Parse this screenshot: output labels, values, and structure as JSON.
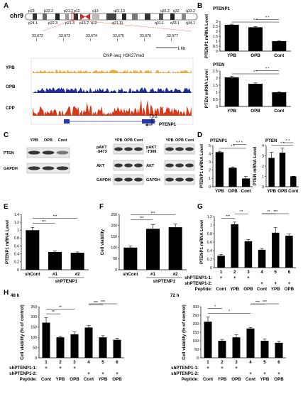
{
  "panels": {
    "A": "A",
    "B": "B",
    "C": "C",
    "D": "D",
    "E": "E",
    "F": "F",
    "G": "G",
    "H": "H"
  },
  "panelA": {
    "chrom": "chr9",
    "bands_top": [
      "p23",
      "p22.2",
      "p21.2",
      "p12",
      "q13",
      "q21.13",
      "q31.2",
      "q32",
      "q33.2"
    ],
    "bands_bottom": [
      "p24.1",
      "p22.3",
      "p21.3",
      "p13.2",
      "q12",
      "q21.11",
      "q31.1",
      "q33.1",
      "q34.1"
    ],
    "coords": [
      "33,672",
      "33,673",
      "33,674",
      "33,675",
      "33,676",
      "33,677"
    ],
    "coord_suffix": "I",
    "scale": "1 kb",
    "chip_label": "ChIP-seq: H3K27me3",
    "tracks": [
      "YPB",
      "OPB",
      "CPP"
    ],
    "track_colors": [
      "#f2a93b",
      "#1f2a9b",
      "#d6391a"
    ],
    "tss": "TSS",
    "gene": "PTENP1"
  },
  "panelC": {
    "lanes": [
      "YPB",
      "OPB",
      "Cont"
    ],
    "blot1_rows": [
      "PTEN",
      "GAPDH"
    ],
    "blot2_rows": [
      "pAKT\n-S473",
      "AKT",
      "GAPDH"
    ],
    "blot3_rows": [
      "pAKT\n-T308",
      "AKT",
      "GAPDH"
    ]
  },
  "chart_data": [
    {
      "id": "B-top",
      "type": "bar",
      "title": "PTENP1",
      "ylabel": "PTENP1 mRNA Level",
      "categories": [
        "YPB",
        "OPB",
        "Cont"
      ],
      "values": [
        2.65,
        2.4,
        1.0
      ],
      "errors": [
        0.06,
        0.06,
        0.04
      ],
      "ylim": [
        0,
        3
      ],
      "yticks": [
        0,
        0.5,
        1,
        1.5,
        2,
        2.5,
        3
      ],
      "sig": [
        [
          "0",
          "2",
          "* *"
        ],
        [
          "1",
          "2",
          "* *"
        ]
      ]
    },
    {
      "id": "B-bot",
      "type": "bar",
      "title": "PTEN",
      "ylabel": "PTEN mRNA Level",
      "categories": [
        "YPB",
        "OPB",
        "Cont"
      ],
      "values": [
        2.05,
        1.6,
        1.0
      ],
      "errors": [
        0.07,
        0.06,
        0.04
      ],
      "ylim": [
        0,
        2.5
      ],
      "yticks": [
        0,
        0.5,
        1,
        1.5,
        2,
        2.5
      ],
      "sig": [
        [
          "0",
          "2",
          "* *"
        ],
        [
          "1",
          "2",
          "* *"
        ]
      ]
    },
    {
      "id": "D-left",
      "type": "bar",
      "title": "PTENP1",
      "ylabel": "PTENP1 mRNA Level",
      "categories": [
        "YPB",
        "OPB",
        "Cont"
      ],
      "values": [
        4.2,
        2.3,
        1.0
      ],
      "errors": [
        0.1,
        0.1,
        0.25
      ],
      "ylim": [
        0,
        5
      ],
      "yticks": [
        0,
        1,
        2,
        3,
        4,
        5
      ],
      "sig": [
        [
          "0",
          "2",
          "* *"
        ],
        [
          "1",
          "2",
          "* * *"
        ]
      ]
    },
    {
      "id": "D-right",
      "type": "bar",
      "title": "PTEN",
      "ylabel": "PTEN mRNA Level",
      "categories": [
        "YPB",
        "OPB",
        "Cont"
      ],
      "values": [
        2.8,
        3.3,
        1.0
      ],
      "errors": [
        0.55,
        0.45,
        0.02
      ],
      "ylim": [
        0,
        4
      ],
      "yticks": [
        0,
        1,
        2,
        3,
        4
      ],
      "sig": [
        [
          "0",
          "2",
          "* *"
        ],
        [
          "1",
          "2",
          "* *"
        ]
      ]
    },
    {
      "id": "E",
      "type": "bar",
      "ylabel": "PTENP1 mRNA Level",
      "categories": [
        "shCont",
        "#1",
        "#2"
      ],
      "group_label": "shPTENP1",
      "values": [
        1.0,
        0.45,
        0.43
      ],
      "errors": [
        0.07,
        0.03,
        0.02
      ],
      "ylim": [
        0,
        1.4
      ],
      "yticks": [
        0,
        0.2,
        0.4,
        0.6,
        0.8,
        1,
        1.2,
        1.4
      ],
      "sig": [
        [
          "0",
          "1",
          "***"
        ],
        [
          "0",
          "2",
          "***"
        ]
      ]
    },
    {
      "id": "F",
      "type": "bar",
      "ylabel": "Cell viability",
      "categories": [
        "shCont",
        "#1",
        "#2"
      ],
      "group_label": "shPTENP1",
      "values": [
        100,
        185,
        192
      ],
      "errors": [
        8,
        18,
        15
      ],
      "ylim": [
        0,
        250
      ],
      "yticks": [
        0,
        50,
        100,
        150,
        200,
        250
      ],
      "sig": [
        [
          "0",
          "1",
          "***"
        ],
        [
          "0",
          "2",
          "***"
        ]
      ]
    },
    {
      "id": "G",
      "type": "bar",
      "ylabel": "PTENP1 mRNA Level",
      "categories": [
        "1",
        "2",
        "3",
        "4",
        "5",
        "6"
      ],
      "values": [
        0.28,
        1.02,
        0.62,
        0.42,
        0.82,
        0.75
      ],
      "errors": [
        0.03,
        0.05,
        0.04,
        0.03,
        0.12,
        0.04
      ],
      "ylim": [
        0,
        1.2
      ],
      "yticks": [
        0,
        0.2,
        0.4,
        0.6,
        0.8,
        1,
        1.2
      ],
      "sig": [
        [
          "0",
          "1",
          "***"
        ],
        [
          "1",
          "2",
          "**"
        ],
        [
          "3",
          "4",
          "**"
        ],
        [
          "3",
          "5",
          "***"
        ]
      ],
      "rows": [
        {
          "label": "shPTENP1-1:",
          "vals": [
            "+",
            "+",
            "+",
            "",
            "",
            ""
          ]
        },
        {
          "label": "shPTENP1-2:",
          "vals": [
            "",
            "",
            "",
            "+",
            "+",
            "+"
          ]
        },
        {
          "label": "Peptide:",
          "vals": [
            "Cont",
            "YPB",
            "OPB",
            "Cont",
            "YPB",
            "OPB"
          ]
        }
      ]
    },
    {
      "id": "H-48",
      "type": "bar",
      "title": "48 h",
      "ylabel": "Cell viability (% of control)",
      "categories": [
        "1",
        "2",
        "3",
        "4",
        "5",
        "6"
      ],
      "values": [
        172,
        100,
        115,
        148,
        100,
        88
      ],
      "errors": [
        25,
        6,
        12,
        10,
        8,
        8
      ],
      "ylim": [
        0,
        250
      ],
      "yticks": [
        0,
        50,
        100,
        150,
        200,
        250
      ],
      "sig": [
        [
          "0",
          "1",
          "**"
        ],
        [
          "0",
          "2",
          "**"
        ],
        [
          "3",
          "4",
          "***"
        ],
        [
          "3",
          "5",
          "***"
        ]
      ],
      "rows": [
        {
          "label": "shPTENP1-1:",
          "vals": [
            "+",
            "+",
            "+",
            "",
            "",
            ""
          ]
        },
        {
          "label": "shPTENP1-2:",
          "vals": [
            "",
            "",
            "",
            "+",
            "+",
            "+"
          ]
        },
        {
          "label": "Peptide:",
          "vals": [
            "Cont",
            "YPB",
            "OPB",
            "Cont",
            "YPB",
            "OPB"
          ]
        }
      ]
    },
    {
      "id": "H-72",
      "type": "bar",
      "title": "72 h",
      "ylabel": "Cell viability (% of control)",
      "categories": [
        "1",
        "2",
        "3",
        "4",
        "5",
        "6"
      ],
      "values": [
        212,
        100,
        120,
        172,
        100,
        88
      ],
      "errors": [
        28,
        8,
        15,
        6,
        10,
        10
      ],
      "ylim": [
        0,
        300
      ],
      "yticks": [
        0,
        50,
        100,
        150,
        200,
        250,
        300
      ],
      "sig": [
        [
          "0",
          "3",
          "*"
        ],
        [
          "0",
          "1",
          "*"
        ],
        [
          "3",
          "4",
          "***"
        ],
        [
          "3",
          "5",
          "***"
        ]
      ],
      "rows": [
        {
          "label": "shPTENP1-1:",
          "vals": [
            "+",
            "+",
            "+",
            "",
            "",
            ""
          ]
        },
        {
          "label": "shPTENP1-2:",
          "vals": [
            "",
            "",
            "",
            "+",
            "+",
            "+"
          ]
        },
        {
          "label": "Peptide:",
          "vals": [
            "Cont",
            "YPB",
            "OPB",
            "Cont",
            "YPB",
            "OPB"
          ]
        }
      ]
    }
  ]
}
